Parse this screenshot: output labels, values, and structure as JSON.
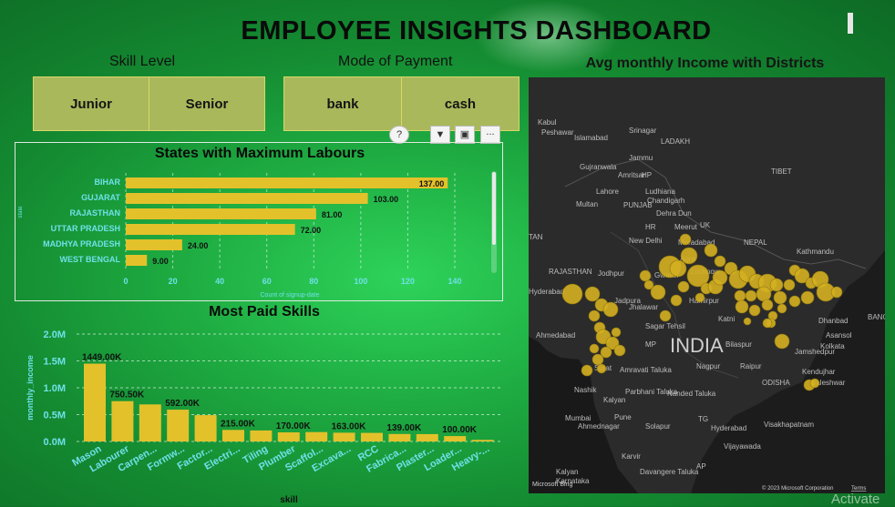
{
  "header": {
    "title": "EMPLOYEE INSIGHTS DASHBOARD"
  },
  "slicers": {
    "skill": {
      "label": "Skill Level",
      "options": [
        "Junior",
        "Senior"
      ]
    },
    "payment": {
      "label": "Mode of Payment",
      "options": [
        "bank",
        "cash"
      ]
    }
  },
  "visual_toolbar": {
    "icons": [
      "help-icon",
      "filter-icon",
      "focus-mode-icon",
      "more-options-icon"
    ],
    "more_label": "..."
  },
  "map": {
    "title": "Avg monthly Income with Districts",
    "place_labels": [
      "Kabul",
      "Peshawar",
      "Islamabad",
      "Srinagar",
      "LADAKH",
      "Jammu",
      "Gujranwala",
      "Amritsar",
      "HP",
      "Lahore",
      "Ludhiana",
      "Chandigarh",
      "Multan",
      "PUNJAB",
      "Dehra Dun",
      "TIBET",
      "HR",
      "Meerut",
      "UK",
      "New Delhi",
      "Moradabad",
      "NEPAL",
      "Kathmandu",
      "TAN",
      "Jodhpur",
      "Gwalior",
      "Agra",
      "Lucknow",
      "RAJASTHAN",
      "Hyderabad",
      "Jadpura",
      "Jhalawar",
      "Hamirpur",
      "Katni",
      "Dhanbad",
      "BANGLAD",
      "Ahmedabad",
      "Sagar Tehsil",
      "MP",
      "Bilaspur",
      "Asansol",
      "Kolkata",
      "INDIA",
      "Jamshedpur",
      "Surat",
      "Amravati Taluka",
      "Nagpur",
      "Raipur",
      "ODISHA",
      "Kendujhar",
      "Baleshwar",
      "Nashik",
      "Parbhani Taluka",
      "Nanded Taluka",
      "Kalyan",
      "Mumbai",
      "Pune",
      "Solapur",
      "Hyderabad",
      "Visakhapatnam",
      "TG",
      "Karvir",
      "Vijayawada",
      "Davangere Taluka",
      "AP",
      "Kalyan",
      "Karnataka",
      "Ahmednagar"
    ],
    "attribution_logo": "Microsoft Bing",
    "copyright": "© 2023 Microsoft Corporation",
    "terms": "Terms",
    "bubble_color": "#d4b020"
  },
  "watermark": "Activate",
  "chart_data": [
    {
      "type": "bar",
      "orientation": "horizontal",
      "title": "States with Maximum Labours",
      "categories": [
        "BIHAR",
        "GUJARAT",
        "RAJASTHAN",
        "UTTAR PRADESH",
        "MADHYA PRADESH",
        "WEST BENGAL"
      ],
      "values": [
        137,
        103,
        81,
        72,
        24,
        9
      ],
      "value_labels": [
        "137.00",
        "103.00",
        "81.00",
        "72.00",
        "24.00",
        "9.00"
      ],
      "xlabel": "Count of signup-date",
      "ylabel": "state",
      "xlim": [
        0,
        140
      ],
      "xticks": [
        "0",
        "20",
        "40",
        "60",
        "80",
        "100",
        "120",
        "140"
      ],
      "grid": true,
      "bar_color": "#e3c12b"
    },
    {
      "type": "bar",
      "title": "Most Paid Skills",
      "categories": [
        "Mason",
        "Labourer",
        "Carpen...",
        "Formw...",
        "Factor...",
        "Electri...",
        "Tiling",
        "Plumber",
        "Scaffol...",
        "Excava...",
        "RCC",
        "Fabrica...",
        "Plaster...",
        "Loader...",
        "Heavy-..."
      ],
      "values": [
        1449000,
        750500,
        690000,
        592000,
        490000,
        215000,
        205000,
        170000,
        175000,
        163000,
        160000,
        139000,
        137000,
        100000,
        30000
      ],
      "data_labels": [
        "1449.00K",
        "750.50K",
        "",
        "592.00K",
        "",
        "215.00K",
        "",
        "170.00K",
        "",
        "163.00K",
        "",
        "139.00K",
        "",
        "100.00K",
        ""
      ],
      "xlabel": "skill",
      "ylabel": "monthly_income",
      "ylim": [
        0,
        2000000
      ],
      "yticks": [
        "0.0M",
        "0.5M",
        "1.0M",
        "1.5M",
        "2.0M"
      ],
      "grid": true,
      "bar_color": "#e3c12b"
    }
  ]
}
